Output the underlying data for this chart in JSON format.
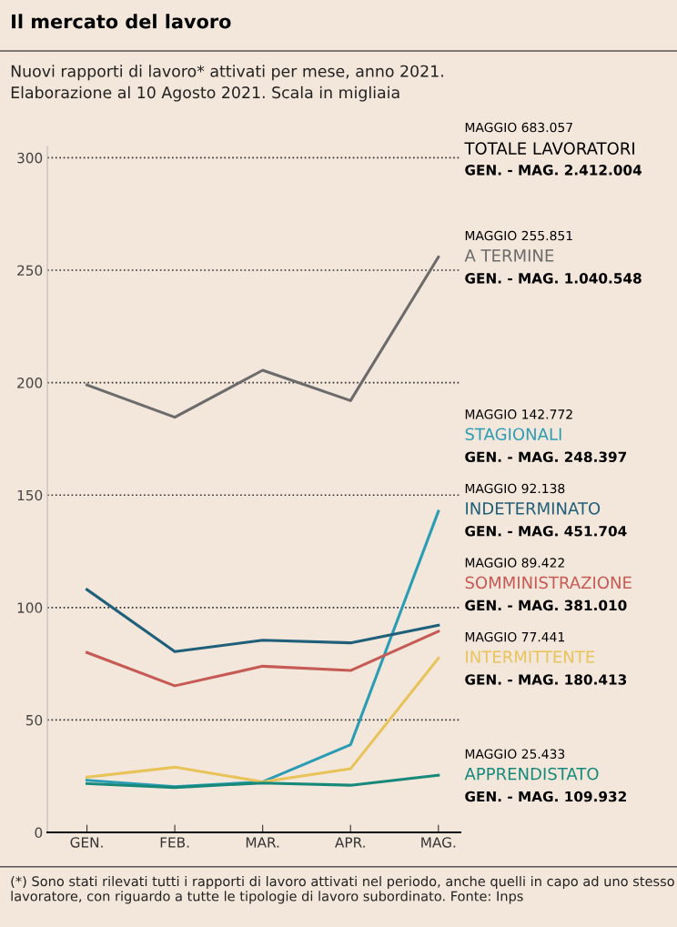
{
  "chart_data": {
    "type": "line",
    "title": "Il mercato del lavoro",
    "subtitle": "Nuovi rapporti di lavoro* attivati per mese, anno 2021.\nElaborazione al 10 Agosto 2021. Scala in migliaia",
    "categories": [
      "GEN.",
      "FEB.",
      "MAR.",
      "APR.",
      "MAG."
    ],
    "series": [
      {
        "name": "A TERMINE",
        "color": "#6b6b6b",
        "values": [
          199,
          184.6,
          205.5,
          192,
          255.851
        ]
      },
      {
        "name": "STAGIONALI",
        "color": "#2a9db5",
        "values": [
          23.2,
          20.3,
          22.5,
          39,
          142.772
        ]
      },
      {
        "name": "INDETERMINATO",
        "color": "#1f5f7a",
        "values": [
          108,
          80.4,
          85.5,
          84.3,
          92.138
        ]
      },
      {
        "name": "SOMMINISTRAZIONE",
        "color": "#c65a55",
        "values": [
          80,
          65.2,
          73.9,
          72,
          89.422
        ]
      },
      {
        "name": "INTERMITTENTE",
        "color": "#e8c35a",
        "values": [
          24.6,
          29,
          22.5,
          28.3,
          77.441
        ]
      },
      {
        "name": "APPRENDISTATO",
        "color": "#17897a",
        "values": [
          21.7,
          20,
          22,
          21,
          25.433
        ]
      }
    ],
    "ylim": [
      0,
      305
    ],
    "yticks": [
      0,
      50,
      100,
      150,
      200,
      250,
      300
    ],
    "grid": "y",
    "annotations": [
      "MAGGIO 683.057",
      "TOTALE LAVORATORI",
      "GEN. - MAG. 2.412.004",
      "MAGGIO 255.851",
      "GEN. - MAG. 1.040.548",
      "MAGGIO 142.772",
      "GEN. - MAG. 248.397",
      "MAGGIO 92.138",
      "GEN. - MAG. 451.704",
      "MAGGIO 89.422",
      "GEN. - MAG. 381.010",
      "MAGGIO 77.441",
      "GEN. - MAG. 180.413",
      "MAGGIO 25.433",
      "GEN. - MAG. 109.932",
      "(*) Sono stati rilevati tutti i rapporti di lavoro attivati nel periodo, anche quelli in capo ad uno stesso lavoratore, con riguardo a tutte le tipologie di lavoro subordinato. Fonte: Inps"
    ]
  }
}
